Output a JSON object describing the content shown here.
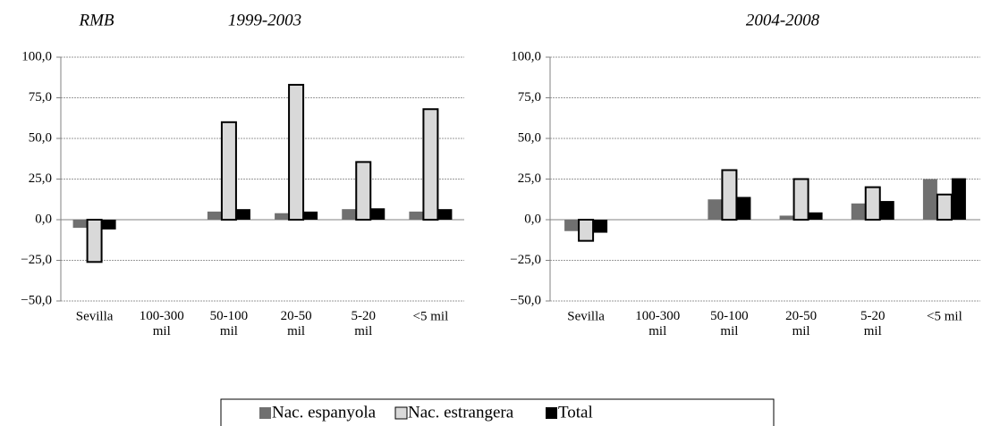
{
  "chart_data": [
    {
      "type": "bar",
      "annotation": "RMB",
      "title": "1999-2003",
      "categories": [
        "Sevilla",
        "100-300\nmil",
        "50-100\nmil",
        "20-50\nmil",
        "5-20\nmil",
        "<5 mil"
      ],
      "series": [
        {
          "name": "Nac. espanyola",
          "color": "#707070",
          "values": [
            -5,
            0,
            5,
            4,
            6.5,
            5
          ]
        },
        {
          "name": "Nac. estrangera",
          "color": "#d9d9d9",
          "values": [
            -26,
            0,
            60,
            83,
            35.5,
            68
          ]
        },
        {
          "name": "Total",
          "color": "#000000",
          "values": [
            -6,
            0,
            6.5,
            5,
            7,
            6.5
          ]
        }
      ],
      "ylim": [
        -50,
        100
      ],
      "yticks": [
        {
          "value": -50,
          "label": "−50,0"
        },
        {
          "value": -25,
          "label": "−25,0"
        },
        {
          "value": 0,
          "label": "0,0"
        },
        {
          "value": 25,
          "label": "25,0"
        },
        {
          "value": 50,
          "label": "50,0"
        },
        {
          "value": 75,
          "label": "75,0"
        },
        {
          "value": 100,
          "label": "100,0"
        }
      ],
      "grid": true
    },
    {
      "type": "bar",
      "title": "2004-2008",
      "categories": [
        "Sevilla",
        "100-300\nmil",
        "50-100\nmil",
        "20-50\nmil",
        "5-20\nmil",
        "<5 mil"
      ],
      "series": [
        {
          "color": "#707070",
          "values": [
            -7,
            0,
            12.5,
            2.5,
            10,
            25
          ]
        },
        {
          "color": "#d9d9d9",
          "values": [
            -13,
            0,
            30.5,
            25,
            20,
            15.5
          ]
        },
        {
          "color": "#000000",
          "values": [
            -8,
            0,
            14,
            4.5,
            11.5,
            25.5
          ]
        }
      ],
      "ylim": [
        -50,
        100
      ],
      "yticks": [
        {
          "value": -50,
          "label": "−50,0"
        },
        {
          "value": -25,
          "label": "−25,0"
        },
        {
          "value": 0,
          "label": "0,0"
        },
        {
          "value": 25,
          "label": "25,0"
        },
        {
          "value": 50,
          "label": "50,0"
        },
        {
          "value": 75,
          "label": "75,0"
        },
        {
          "value": 100,
          "label": "100,0"
        }
      ],
      "grid": true
    }
  ]
}
